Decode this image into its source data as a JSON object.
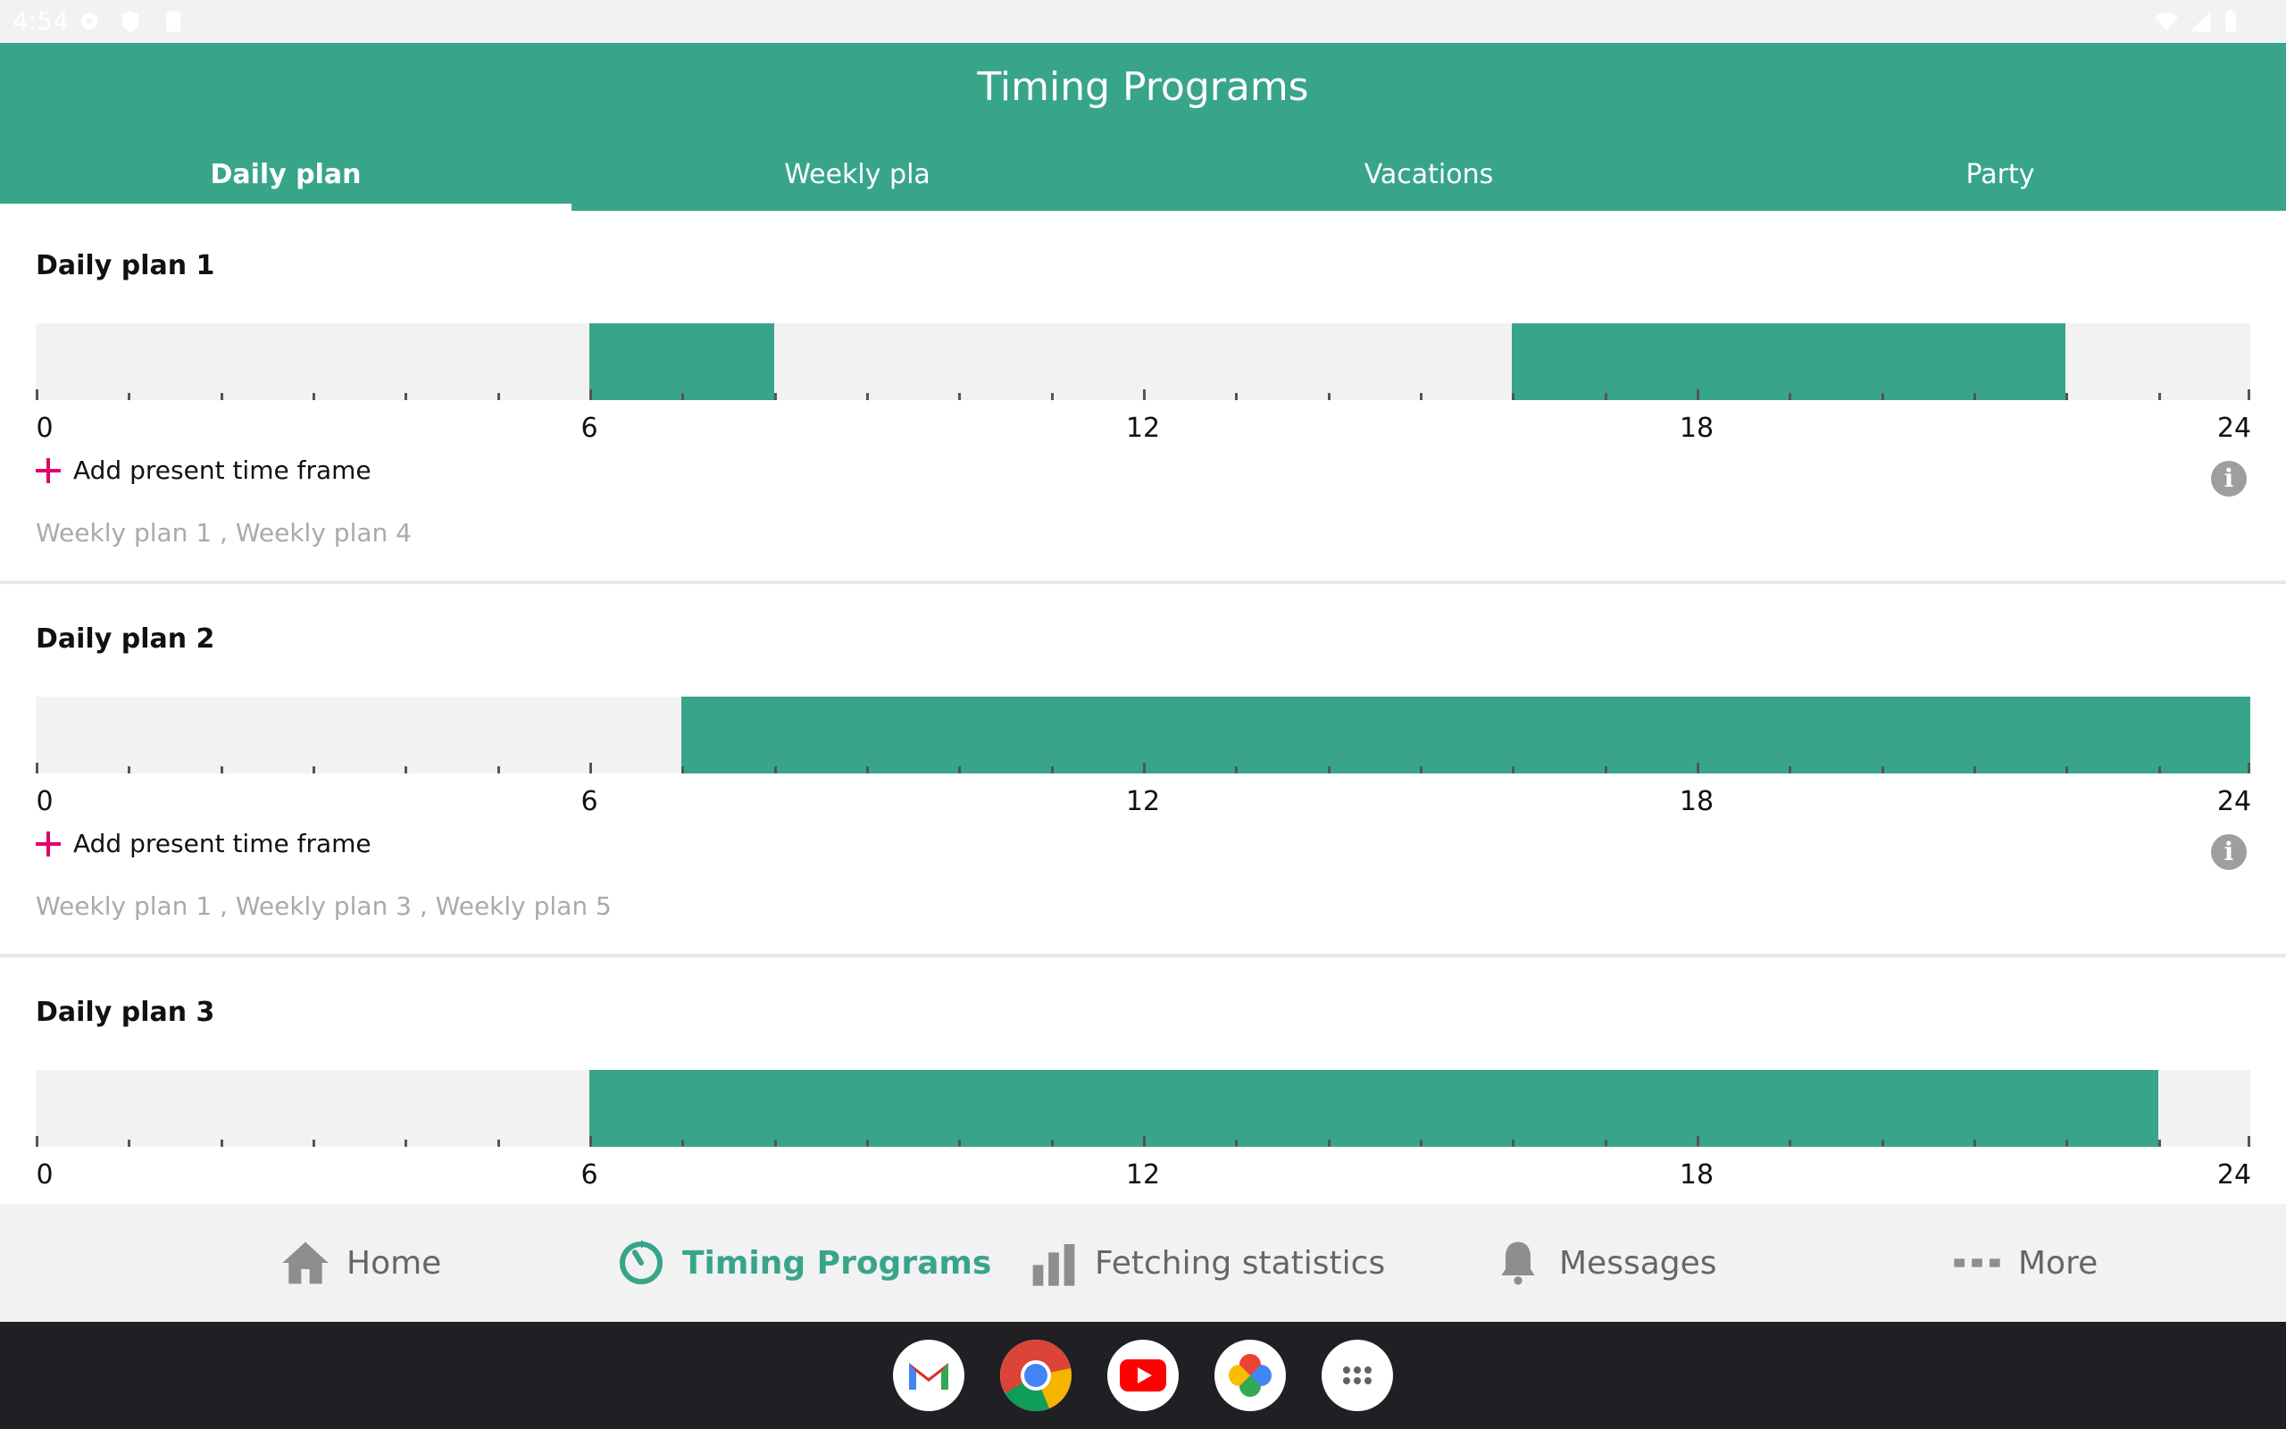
{
  "status_bar": {
    "time": "4:54",
    "icons": [
      "settings-icon",
      "shield-icon",
      "sd-card-icon",
      "wifi-icon",
      "signal-icon",
      "battery-icon"
    ]
  },
  "header": {
    "title": "Timing Programs",
    "tabs": [
      {
        "label": "Daily plan",
        "active": true
      },
      {
        "label": "Weekly pla",
        "active": false
      },
      {
        "label": "Vacations",
        "active": false
      },
      {
        "label": "Party",
        "active": false
      }
    ]
  },
  "plans": [
    {
      "title": "Daily plan 1",
      "segments": [
        [
          6,
          8
        ],
        [
          16,
          22
        ]
      ],
      "add_label": "Add present time frame",
      "assigned": "Weekly plan 1 , Weekly plan 4"
    },
    {
      "title": "Daily plan 2",
      "segments": [
        [
          7,
          24
        ]
      ],
      "add_label": "Add present time frame",
      "assigned": "Weekly plan 1 , Weekly plan 3 , Weekly plan 5"
    },
    {
      "title": "Daily plan 3",
      "segments": [
        [
          6,
          23
        ]
      ],
      "add_label": "",
      "assigned": ""
    }
  ],
  "timeline": {
    "min_hour": 0,
    "max_hour": 24,
    "major_labels": [
      "0",
      "6",
      "12",
      "18",
      "24"
    ]
  },
  "bottom_nav": {
    "items": [
      {
        "label": "Home",
        "icon": "home-icon",
        "active": false
      },
      {
        "label": "Timing Programs",
        "icon": "timer-icon",
        "active": true
      },
      {
        "label": "Fetching statistics",
        "icon": "bar-chart-icon",
        "active": false
      },
      {
        "label": "Messages",
        "icon": "bell-icon",
        "active": false
      },
      {
        "label": "More",
        "icon": "more-dots-icon",
        "active": false
      }
    ]
  },
  "dock": {
    "apps": [
      "gmail-icon",
      "chrome-icon",
      "youtube-icon",
      "photos-icon",
      "app-drawer-icon"
    ]
  },
  "colors": {
    "accent": "#38a58b",
    "plus": "#e2006a",
    "track": "#f2f2f2",
    "muted_text": "#aaaaaa"
  }
}
